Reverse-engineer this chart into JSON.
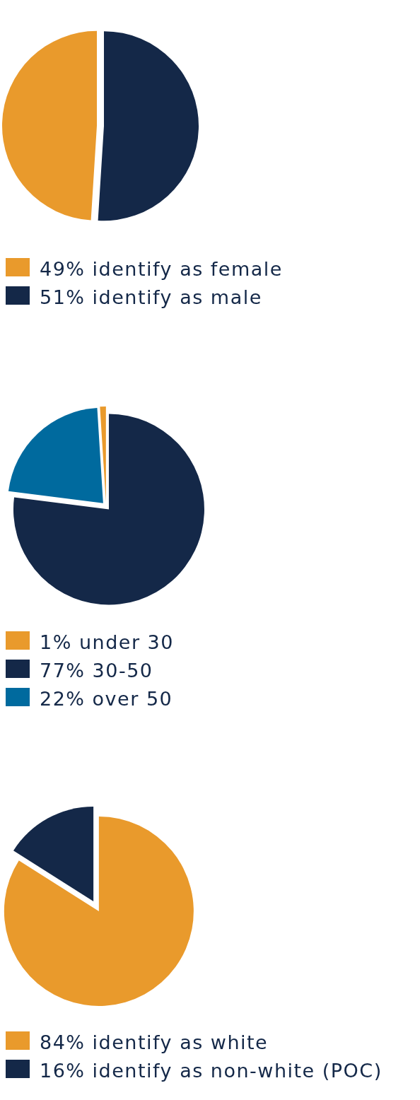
{
  "chart_data": [
    {
      "type": "pie",
      "categories": [
        "49% identify as female",
        "51% identify as male"
      ],
      "values": [
        49,
        51
      ],
      "colors": [
        "#e99a2c",
        "#142848"
      ],
      "legend": "bottom"
    },
    {
      "type": "pie",
      "categories": [
        "1% under 30",
        "77% 30-50",
        "22% over 50"
      ],
      "values": [
        1,
        77,
        22
      ],
      "colors": [
        "#e99a2c",
        "#142848",
        "#006a9e"
      ],
      "legend": "bottom"
    },
    {
      "type": "pie",
      "categories": [
        "84% identify as white",
        "16% identify as non-white (POC)"
      ],
      "values": [
        84,
        16
      ],
      "colors": [
        "#e99a2c",
        "#142848"
      ],
      "legend": "bottom"
    }
  ]
}
